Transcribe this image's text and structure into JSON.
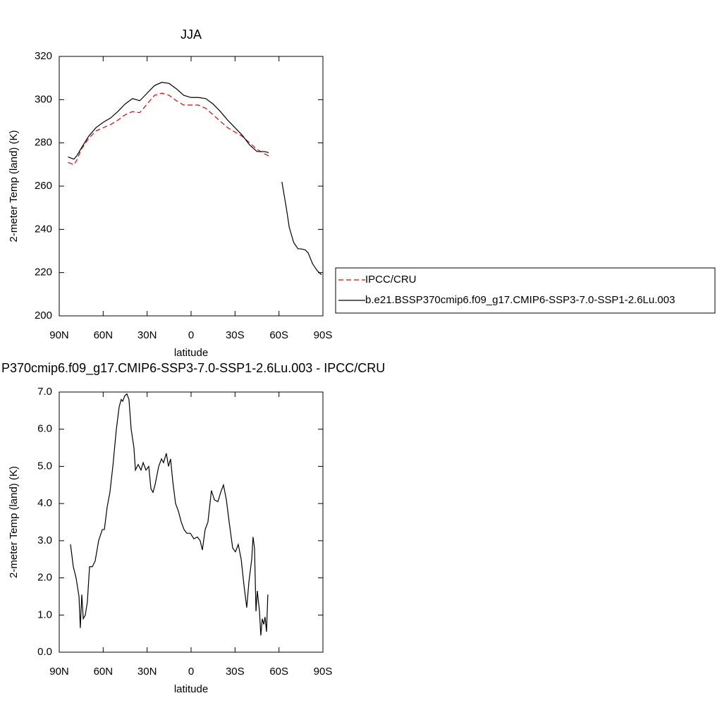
{
  "chart_data": [
    {
      "type": "line",
      "title": "JJA",
      "x_label": "latitude",
      "y_label": "2-meter Temp (land) (K)",
      "x": [
        84,
        82,
        80,
        78,
        75,
        70,
        65,
        60,
        55,
        50,
        45,
        40,
        35,
        30,
        25,
        20,
        15,
        10,
        5,
        0,
        -5,
        -10,
        -15,
        -20,
        -25,
        -30,
        -35,
        -40,
        -45,
        -50,
        -53,
        -55,
        -62,
        -65,
        -67,
        -70,
        -73,
        -75,
        -78,
        -80,
        -83,
        -86,
        -89
      ],
      "series": [
        {
          "name": "IPCC/CRU",
          "color": "#e00000",
          "line_style": "dashed",
          "values": [
            271,
            270.5,
            270,
            272,
            277,
            282,
            285.5,
            287,
            288.5,
            290.5,
            293,
            294.5,
            294,
            298,
            302,
            303,
            302,
            299.5,
            297.5,
            297.5,
            297.5,
            296,
            293,
            290,
            287,
            285,
            283,
            280,
            277,
            275,
            274,
            null,
            null,
            null,
            null,
            null,
            null,
            null,
            null,
            null,
            null,
            null,
            null
          ]
        },
        {
          "name": "b.e21.BSSP370cmip6.f09_g17.CMIP6-SSP3-7.0-SSP1-2.6Lu.003",
          "color": "#000000",
          "line_style": "solid",
          "values": [
            273.5,
            273,
            272.5,
            274,
            277.5,
            283,
            287,
            289.5,
            291.5,
            294.5,
            298,
            300.5,
            299.5,
            303,
            306.5,
            308,
            307.5,
            305,
            302,
            301,
            301,
            300.5,
            298,
            294.5,
            290.5,
            287,
            283.5,
            279,
            276,
            276,
            275.5,
            null,
            262,
            250,
            241,
            234,
            231,
            231,
            230.5,
            229,
            224,
            221,
            219
          ]
        }
      ],
      "xlim": [
        90,
        -90
      ],
      "xticks": [
        {
          "value": 90,
          "label": "90N"
        },
        {
          "value": 60,
          "label": "60N"
        },
        {
          "value": 30,
          "label": "30N"
        },
        0,
        {
          "value": -30,
          "label": "30S"
        },
        {
          "value": -60,
          "label": "60S"
        },
        {
          "value": -90,
          "label": "90S"
        }
      ],
      "ylim": [
        200,
        320
      ],
      "yticks": [
        200,
        220,
        240,
        260,
        280,
        300,
        320
      ],
      "legend": "right"
    },
    {
      "type": "line",
      "title": "P370cmip6.f09_g17.CMIP6-SSP3-7.0-SSP1-2.6Lu.003 - IPCC/CRU",
      "x_label": "latitude",
      "y_label": "2-meter Temp (land) (K)",
      "x": [
        82.3,
        80.4,
        78.5,
        76.5,
        75.6,
        74.6,
        73.6,
        72.2,
        70.8,
        69.3,
        67.4,
        65.5,
        63.1,
        60.6,
        59.2,
        57.3,
        55.4,
        53.4,
        51,
        49.1,
        47.7,
        46.7,
        45.2,
        43.8,
        42.4,
        40.9,
        39,
        38,
        36.1,
        34.2,
        32.7,
        30.8,
        28.9,
        27.4,
        26,
        24.6,
        22.1,
        20.2,
        18.8,
        16.9,
        15.4,
        14,
        12.5,
        10.6,
        8.7,
        6.7,
        4.8,
        2.9,
        0.5,
        -1.9,
        -4.3,
        -6.2,
        -7.7,
        -9.6,
        -11.5,
        -13.9,
        -15.9,
        -18.3,
        -20.2,
        -22.1,
        -24.1,
        -26,
        -28.4,
        -30.3,
        -32.2,
        -34.2,
        -36.1,
        -38,
        -39.5,
        -41.4,
        -42.3,
        -43.3,
        -44.3,
        -45.2,
        -46.7,
        -47.6,
        -48.6,
        -49.6,
        -50.5,
        -51.5,
        -52.4
      ],
      "values": [
        2.9,
        2.3,
        2.0,
        1.5,
        0.65,
        1.55,
        0.9,
        1.0,
        1.35,
        2.3,
        2.3,
        2.45,
        3.0,
        3.3,
        3.3,
        3.9,
        4.3,
        5.0,
        6.0,
        6.6,
        6.8,
        6.75,
        6.9,
        6.95,
        6.8,
        6.0,
        5.5,
        4.9,
        5.05,
        4.9,
        5.1,
        4.9,
        5.0,
        4.4,
        4.3,
        4.5,
        5.0,
        5.2,
        5.1,
        5.35,
        5.0,
        5.2,
        4.6,
        4.0,
        3.8,
        3.5,
        3.3,
        3.2,
        3.2,
        3.05,
        3.1,
        3.0,
        2.75,
        3.3,
        3.5,
        4.35,
        4.1,
        4.05,
        4.3,
        4.5,
        4.1,
        3.5,
        2.8,
        2.7,
        2.9,
        2.5,
        1.8,
        1.2,
        1.9,
        2.5,
        3.1,
        2.8,
        1.1,
        1.65,
        1.1,
        0.45,
        0.9,
        0.75,
        0.95,
        0.55,
        1.55
      ],
      "color": "#000000",
      "xlim": [
        90,
        -90
      ],
      "xticks": [
        {
          "value": 90,
          "label": "90N"
        },
        {
          "value": 60,
          "label": "60N"
        },
        {
          "value": 30,
          "label": "30N"
        },
        0,
        {
          "value": -30,
          "label": "30S"
        },
        {
          "value": -60,
          "label": "60S"
        },
        {
          "value": -90,
          "label": "90S"
        }
      ],
      "ylim": [
        0,
        7
      ],
      "yticks": [
        {
          "value": 0,
          "label": "0.0"
        },
        {
          "value": 1,
          "label": "1.0"
        },
        {
          "value": 2,
          "label": "2.0"
        },
        {
          "value": 3,
          "label": "3.0"
        },
        {
          "value": 4,
          "label": "4.0"
        },
        {
          "value": 5,
          "label": "5.0"
        },
        {
          "value": 6,
          "label": "6.0"
        },
        {
          "value": 7,
          "label": "7.0"
        }
      ]
    }
  ]
}
